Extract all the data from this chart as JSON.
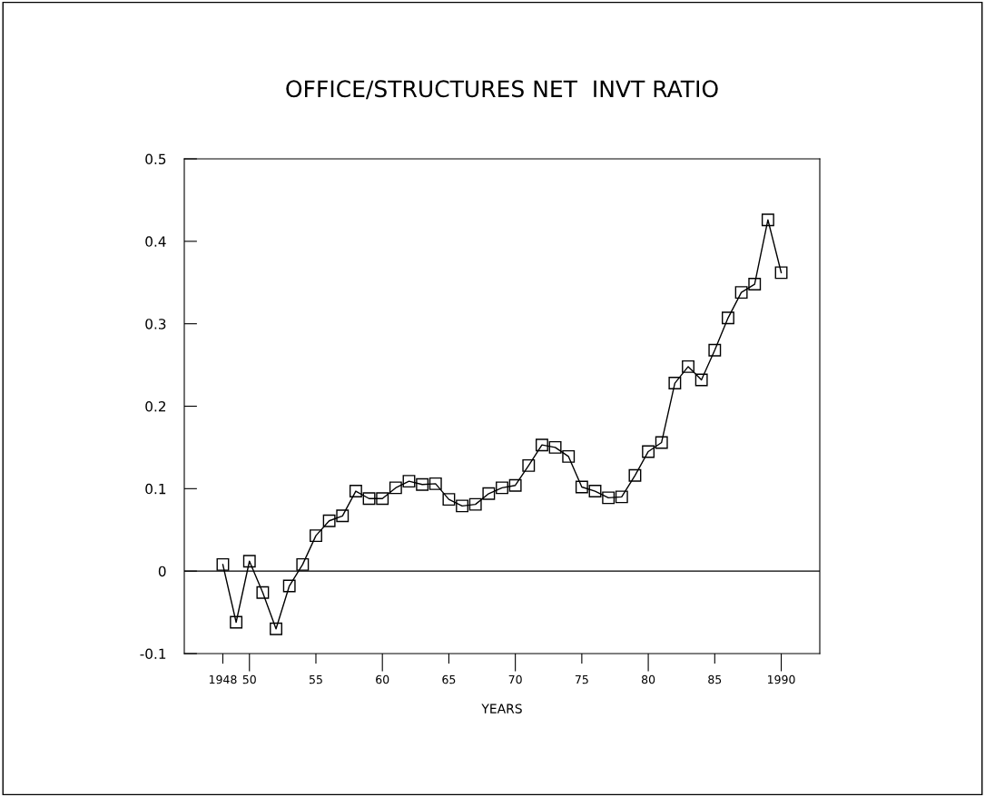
{
  "chart_data": {
    "type": "line",
    "title": "OFFICE/STRUCTURES NET  INVT RATIO",
    "xlabel": "YEARS",
    "x": [
      1948,
      1949,
      1950,
      1951,
      1952,
      1953,
      1954,
      1955,
      1956,
      1957,
      1958,
      1959,
      1960,
      1961,
      1962,
      1963,
      1964,
      1965,
      1966,
      1967,
      1968,
      1969,
      1970,
      1971,
      1972,
      1973,
      1974,
      1975,
      1976,
      1977,
      1978,
      1979,
      1980,
      1981,
      1982,
      1983,
      1984,
      1985,
      1986,
      1987,
      1988,
      1989,
      1990
    ],
    "series": [
      {
        "color": "#000000",
        "values": [
          0.008,
          -0.062,
          0.012,
          -0.026,
          -0.07,
          -0.018,
          0.008,
          0.043,
          0.061,
          0.067,
          0.097,
          0.088,
          0.088,
          0.101,
          0.109,
          0.105,
          0.106,
          0.087,
          0.079,
          0.081,
          0.094,
          0.101,
          0.104,
          0.128,
          0.153,
          0.15,
          0.139,
          0.102,
          0.097,
          0.089,
          0.09,
          0.116,
          0.145,
          0.156,
          0.228,
          0.248,
          0.232,
          0.268,
          0.307,
          0.338,
          0.348,
          0.426,
          0.362
        ]
      }
    ],
    "marker": "square",
    "line_style": "solid",
    "grid": false,
    "legend": false,
    "xlim": [
      1945.1,
      1992.9
    ],
    "ylim": [
      -0.1,
      0.5
    ],
    "xticks": [
      {
        "value": 1948,
        "label": "1948"
      },
      {
        "value": 1950,
        "label": "50"
      },
      {
        "value": 1955,
        "label": "55"
      },
      {
        "value": 1960,
        "label": "60"
      },
      {
        "value": 1965,
        "label": "65"
      },
      {
        "value": 1970,
        "label": "70"
      },
      {
        "value": 1975,
        "label": "75"
      },
      {
        "value": 1980,
        "label": "80"
      },
      {
        "value": 1985,
        "label": "85"
      },
      {
        "value": 1990,
        "label": "1990"
      }
    ],
    "yticks": [
      {
        "value": -0.1,
        "label": "-0.1"
      },
      0,
      {
        "value": 0.1,
        "label": "0.1"
      },
      {
        "value": 0.2,
        "label": "0.2"
      },
      {
        "value": 0.3,
        "label": "0.3"
      },
      {
        "value": 0.4,
        "label": "0.4"
      },
      {
        "value": 0.5,
        "label": "0.5"
      }
    ],
    "ref_lines": [
      {
        "axis": "y",
        "value": 0,
        "color": "#000000",
        "line_style": "solid"
      }
    ]
  }
}
